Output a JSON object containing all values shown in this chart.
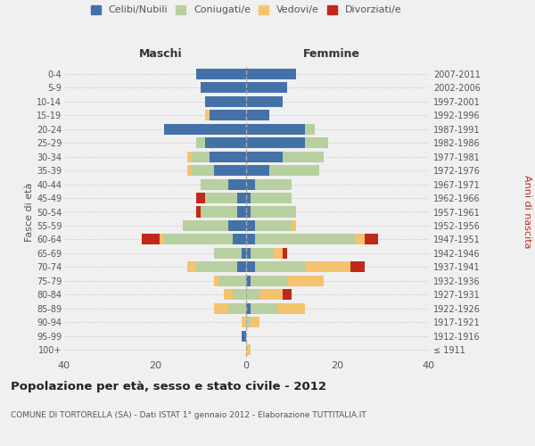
{
  "age_groups": [
    "100+",
    "95-99",
    "90-94",
    "85-89",
    "80-84",
    "75-79",
    "70-74",
    "65-69",
    "60-64",
    "55-59",
    "50-54",
    "45-49",
    "40-44",
    "35-39",
    "30-34",
    "25-29",
    "20-24",
    "15-19",
    "10-14",
    "5-9",
    "0-4"
  ],
  "birth_years": [
    "≤ 1911",
    "1912-1916",
    "1917-1921",
    "1922-1926",
    "1927-1931",
    "1932-1936",
    "1937-1941",
    "1942-1946",
    "1947-1951",
    "1952-1956",
    "1957-1961",
    "1962-1966",
    "1967-1971",
    "1972-1976",
    "1977-1981",
    "1982-1986",
    "1987-1991",
    "1992-1996",
    "1997-2001",
    "2002-2006",
    "2007-2011"
  ],
  "males": {
    "celibi": [
      0,
      1,
      0,
      0,
      0,
      0,
      2,
      1,
      3,
      4,
      2,
      2,
      4,
      7,
      8,
      9,
      18,
      8,
      9,
      10,
      11
    ],
    "coniugati": [
      0,
      0,
      0,
      4,
      3,
      6,
      9,
      6,
      15,
      10,
      8,
      7,
      6,
      5,
      4,
      2,
      0,
      0,
      0,
      0,
      0
    ],
    "vedovi": [
      0,
      0,
      1,
      3,
      2,
      1,
      2,
      0,
      1,
      0,
      0,
      0,
      0,
      1,
      1,
      0,
      0,
      1,
      0,
      0,
      0
    ],
    "divorziati": [
      0,
      0,
      0,
      0,
      0,
      0,
      0,
      0,
      4,
      0,
      1,
      2,
      0,
      0,
      0,
      0,
      0,
      0,
      0,
      0,
      0
    ]
  },
  "females": {
    "nubili": [
      0,
      0,
      0,
      1,
      0,
      1,
      2,
      1,
      2,
      2,
      1,
      1,
      2,
      5,
      8,
      13,
      13,
      5,
      8,
      9,
      11
    ],
    "coniugate": [
      0,
      0,
      1,
      6,
      3,
      8,
      11,
      5,
      22,
      8,
      10,
      9,
      8,
      11,
      9,
      5,
      2,
      0,
      0,
      0,
      0
    ],
    "vedove": [
      1,
      0,
      2,
      6,
      5,
      8,
      10,
      2,
      2,
      1,
      0,
      0,
      0,
      0,
      0,
      0,
      0,
      0,
      0,
      0,
      0
    ],
    "divorziate": [
      0,
      0,
      0,
      0,
      2,
      0,
      3,
      1,
      3,
      0,
      0,
      0,
      0,
      0,
      0,
      0,
      0,
      0,
      0,
      0,
      0
    ]
  },
  "colors": {
    "celibi": "#4472a8",
    "coniugati": "#b8cfa0",
    "vedovi": "#f5c36e",
    "divorziati": "#c0281c"
  },
  "title": "Popolazione per età, sesso e stato civile - 2012",
  "subtitle": "COMUNE DI TORTORELLA (SA) - Dati ISTAT 1° gennaio 2012 - Elaborazione TUTTITALIA.IT",
  "xlabel_left": "Maschi",
  "xlabel_right": "Femmine",
  "ylabel_left": "Fasce di età",
  "ylabel_right": "Anni di nascita",
  "xlim": 40,
  "legend_labels": [
    "Celibi/Nubili",
    "Coniugati/e",
    "Vedovi/e",
    "Divorziati/e"
  ],
  "bg_color": "#f0f0f0",
  "plot_bg": "#f0f0f0"
}
